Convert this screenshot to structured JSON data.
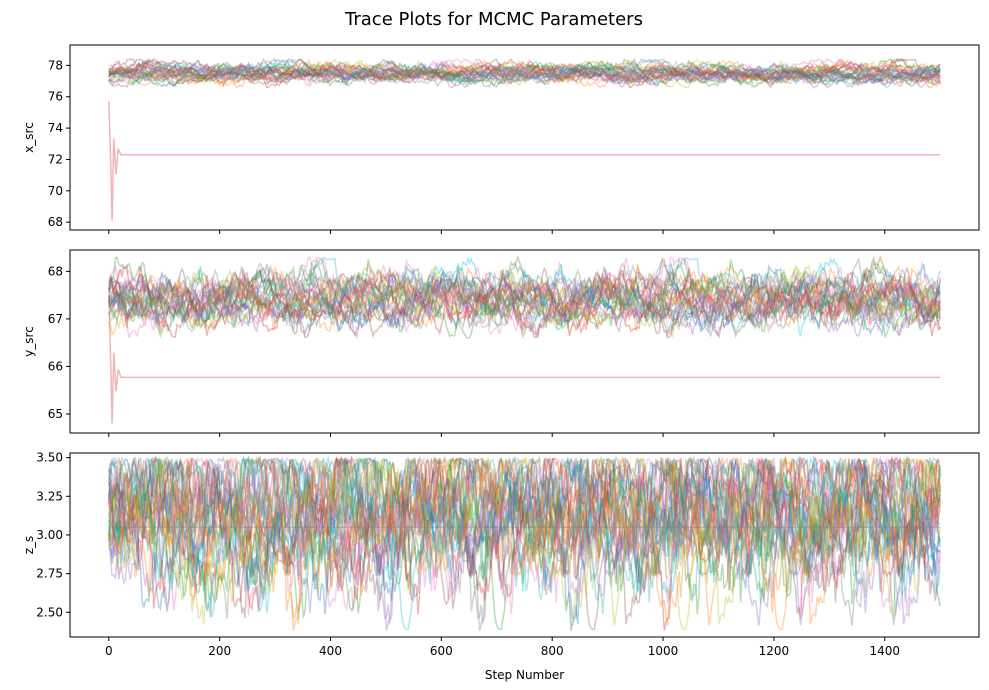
{
  "chart_data": {
    "type": "line",
    "title": "Trace Plots for MCMC Parameters",
    "xlabel": "Step Number",
    "xlim": [
      -70,
      1570
    ],
    "x_ticks": [
      0,
      200,
      400,
      600,
      800,
      1000,
      1200,
      1400
    ],
    "x_tick_labels": [
      "0",
      "200",
      "400",
      "600",
      "800",
      "1000",
      "1200",
      "1400"
    ],
    "n_steps": 1500,
    "walker_colors": [
      "#1f77b4",
      "#ff7f0e",
      "#2ca02c",
      "#d62728",
      "#9467bd",
      "#8c564b",
      "#e377c2",
      "#7f7f7f",
      "#bcbd22",
      "#17becf"
    ],
    "series_alpha": 0.35,
    "grid": false,
    "panels": [
      {
        "ylabel": "x_src",
        "ylim": [
          67.5,
          79.3
        ],
        "y_ticks": [
          68,
          70,
          72,
          74,
          76,
          78
        ],
        "y_tick_labels": [
          "68",
          "70",
          "72",
          "74",
          "76",
          "78"
        ],
        "walker_band": [
          76.6,
          78.4
        ],
        "walker_center": 77.5,
        "stuck_walker": {
          "color": "#d62728",
          "start": 75.7,
          "min": 68.1,
          "value": 72.3
        }
      },
      {
        "ylabel": "y_src",
        "ylim": [
          64.6,
          68.45
        ],
        "y_ticks": [
          65,
          66,
          67,
          68
        ],
        "y_tick_labels": [
          "65",
          "66",
          "67",
          "68"
        ],
        "walker_band": [
          66.6,
          68.3
        ],
        "walker_center": 67.4,
        "stuck_walker": {
          "color": "#d62728",
          "start": 67.5,
          "min": 64.8,
          "value": 65.77
        }
      },
      {
        "ylabel": "z_s",
        "ylim": [
          2.34,
          3.53
        ],
        "y_ticks": [
          2.5,
          2.75,
          3.0,
          3.25,
          3.5
        ],
        "y_tick_labels": [
          "2.50",
          "2.75",
          "3.00",
          "3.25",
          "3.50"
        ],
        "walker_band": [
          2.38,
          3.5
        ],
        "walker_center": 3.2,
        "stuck_walker": {
          "color": "#7f7f7f",
          "start": 3.05,
          "min": 3.05,
          "value": 3.05
        }
      }
    ]
  }
}
